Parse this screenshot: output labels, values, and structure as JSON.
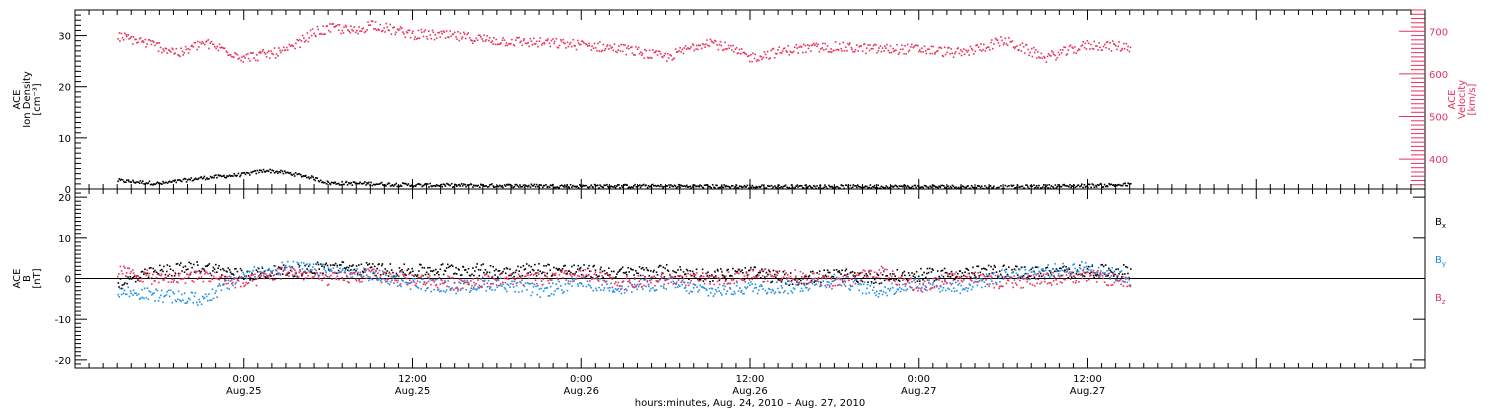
{
  "chart_data": [
    {
      "type": "scatter",
      "panel": "plasma",
      "left_axis": {
        "label_lines": [
          "ACE",
          "Ion Density",
          "[cm⁻³]"
        ],
        "ylim": [
          0,
          35
        ],
        "ticks": [
          0,
          10,
          20,
          30
        ],
        "color": "#000000"
      },
      "right_axis": {
        "label_lines": [
          "ACE",
          "Velocity",
          "[km/s]"
        ],
        "ylim": [
          330,
          750
        ],
        "ticks": [
          400,
          500,
          600,
          700
        ],
        "color": "#e8325a"
      },
      "series": [
        {
          "axis": "left",
          "color": "#000000",
          "x": [
            -9,
            -6,
            -3,
            0,
            1.5,
            3,
            4.5,
            6,
            9,
            12,
            18,
            24,
            30,
            36,
            42,
            48,
            54,
            60,
            63
          ],
          "y": [
            1.8,
            1.2,
            2.3,
            3.0,
            3.8,
            3.3,
            2.6,
            1.3,
            1.2,
            0.9,
            0.8,
            0.7,
            0.7,
            0.6,
            0.6,
            0.6,
            0.5,
            0.8,
            1.0
          ]
        },
        {
          "axis": "right",
          "color": "#e8325a",
          "x": [
            -9,
            -7.5,
            -6,
            -4.5,
            -3,
            -1.5,
            0,
            3,
            5,
            6.5,
            8,
            9,
            10.5,
            12,
            15,
            18,
            24,
            27,
            30,
            33,
            36,
            39,
            42,
            45,
            48,
            51,
            54,
            57,
            60,
            63
          ],
          "y": [
            690,
            680,
            665,
            650,
            675,
            660,
            640,
            655,
            700,
            710,
            700,
            720,
            705,
            695,
            690,
            680,
            670,
            660,
            640,
            680,
            640,
            660,
            665,
            660,
            660,
            650,
            680,
            640,
            670,
            665
          ]
        }
      ],
      "grid": false
    },
    {
      "type": "scatter",
      "panel": "magnetic-field",
      "left_axis": {
        "label_lines": [
          "ACE",
          "B",
          "[nT]"
        ],
        "ylim": [
          -22,
          22
        ],
        "ticks": [
          -20,
          -10,
          0,
          10,
          20
        ],
        "color": "#000000"
      },
      "zero_line": true,
      "series": [
        {
          "name": "B",
          "subscript": "x",
          "color": "#000000",
          "x": [
            -9,
            -6,
            -3,
            0,
            3,
            6,
            9,
            12,
            15,
            18,
            21,
            24,
            27,
            30,
            33,
            36,
            39,
            42,
            45,
            48,
            51,
            54,
            57,
            60,
            63
          ],
          "y": [
            -1,
            2,
            3,
            1,
            2,
            3,
            2.5,
            2,
            2.5,
            2,
            2.5,
            2,
            1.5,
            2,
            1,
            1.5,
            0,
            1,
            0.5,
            1,
            1.5,
            2,
            1.5,
            2,
            2
          ]
        },
        {
          "name": "B",
          "subscript": "y",
          "color": "#1e90e6",
          "x": [
            -9,
            -6,
            -3,
            0,
            3,
            6,
            9,
            12,
            15,
            18,
            21,
            24,
            27,
            30,
            33,
            36,
            39,
            42,
            45,
            48,
            51,
            54,
            57,
            60,
            63
          ],
          "y": [
            -3,
            -4,
            -5,
            1,
            3,
            2,
            1,
            -1,
            -2,
            -1,
            -3,
            -1,
            -2,
            -1,
            -3,
            -2,
            -2,
            0,
            -3,
            -1,
            -2,
            1,
            2,
            3,
            0
          ]
        },
        {
          "name": "B",
          "subscript": "z",
          "color": "#e8325a",
          "x": [
            -9,
            -6,
            -3,
            0,
            3,
            6,
            9,
            12,
            15,
            18,
            21,
            24,
            27,
            30,
            33,
            36,
            39,
            42,
            45,
            48,
            51,
            54,
            57,
            60,
            63
          ],
          "y": [
            2,
            0,
            1,
            -1,
            2,
            0,
            1,
            0,
            -1,
            0,
            0,
            1,
            -1,
            0,
            0,
            1,
            1,
            -1,
            2,
            -2,
            1,
            -1,
            0,
            1,
            -1
          ]
        }
      ],
      "grid": false
    }
  ],
  "x_axis": {
    "xlim": [
      -12,
      84
    ],
    "ticks": [
      {
        "x": 0,
        "time": "0:00",
        "date": "Aug.25"
      },
      {
        "x": 12,
        "time": "12:00",
        "date": "Aug.25"
      },
      {
        "x": 24,
        "time": "0:00",
        "date": "Aug.26"
      },
      {
        "x": 36,
        "time": "12:00",
        "date": "Aug.26"
      },
      {
        "x": 48,
        "time": "0:00",
        "date": "Aug.27"
      },
      {
        "x": 60,
        "time": "12:00",
        "date": "Aug.27"
      }
    ],
    "title": "hours:minutes, Aug. 24, 2010 – Aug. 27, 2010"
  }
}
